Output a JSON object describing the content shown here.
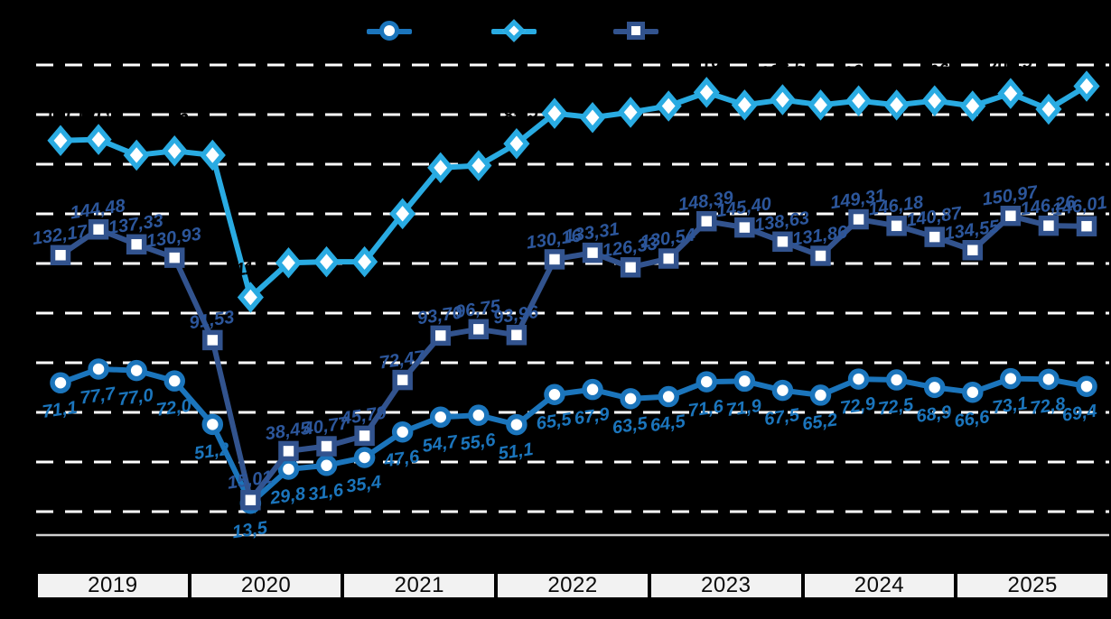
{
  "background_color": "#000000",
  "legend": {
    "items": [
      {
        "marker": "circle",
        "color": "#1B75BC",
        "label_visible": false
      },
      {
        "marker": "diamond",
        "color": "#29ABE2",
        "label_visible": false
      },
      {
        "marker": "square",
        "color": "#32538E",
        "label_visible": false
      }
    ]
  },
  "chart_data": {
    "type": "line",
    "x_years": [
      "2019",
      "2020",
      "2021",
      "2022",
      "2023",
      "2024",
      "2025"
    ],
    "points_per_year": 4,
    "ylim": [
      0,
      225
    ],
    "grid": {
      "dashed_lines": 10,
      "color": "#FFFFFF",
      "baseline_color": "#D0D0D0"
    },
    "legend_position": "top",
    "series": [
      {
        "name": "series-circle",
        "marker": "circle",
        "color": "#1B75BC",
        "label_color": "#1B75BC",
        "labels_visible": true,
        "values": [
          71.1,
          77.7,
          77.0,
          72.0,
          51.2,
          13.5,
          29.8,
          31.6,
          35.4,
          47.6,
          54.7,
          55.6,
          51.1,
          65.5,
          67.9,
          63.5,
          64.5,
          71.6,
          71.9,
          67.5,
          65.2,
          72.9,
          72.5,
          68.9,
          66.6,
          73.1,
          72.8,
          69.4
        ],
        "labels": [
          "71,1",
          "77,7",
          "77,0",
          "72,0",
          "51,2",
          "13,5",
          "29,8",
          "31,6",
          "35,4",
          "47,6",
          "54,7",
          "55,6",
          "51,1",
          "65,5",
          "67,9",
          "63,5",
          "64,5",
          "71,6",
          "71,9",
          "67,5",
          "65,2",
          "72,9",
          "72,5",
          "68,9",
          "66,6",
          "73,1",
          "72,8",
          "69,4"
        ]
      },
      {
        "name": "series-diamond",
        "marker": "diamond",
        "color": "#29ABE2",
        "label_color": "#000000",
        "labels_visible": false,
        "values": [
          187,
          187.5,
          180,
          182,
          180,
          112,
          128.5,
          129,
          129,
          152,
          174,
          175,
          185.5,
          200,
          198,
          200.5,
          203.5,
          210,
          204,
          206.5,
          204,
          206,
          204,
          206,
          203.5,
          209.5,
          202,
          213
        ]
      },
      {
        "name": "series-square",
        "marker": "square",
        "color": "#32538E",
        "label_color": "#2C569B",
        "labels_visible": true,
        "values": [
          132.17,
          144.48,
          137.33,
          130.93,
          91.53,
          15.01,
          38.45,
          40.77,
          45.79,
          72.47,
          93.7,
          96.75,
          93.96,
          130.16,
          133.31,
          126.33,
          130.54,
          148.39,
          145.4,
          138.63,
          131.86,
          149.31,
          146.18,
          140.87,
          134.55,
          150.97,
          146.26,
          146.01
        ],
        "labels": [
          "132,17",
          "144,48",
          "137,33",
          "130,93",
          "91,53",
          "15,01",
          "38,45",
          "40,77",
          "45,79",
          "72,47",
          "93,70",
          "96,75",
          "93,96",
          "130,16",
          "133,31",
          "126,33",
          "130,54",
          "148,39",
          "145,40",
          "138,63",
          "131,86",
          "149,31",
          "146,18",
          "140,87",
          "134,55",
          "150,97",
          "146,26",
          "146,01"
        ]
      }
    ]
  }
}
